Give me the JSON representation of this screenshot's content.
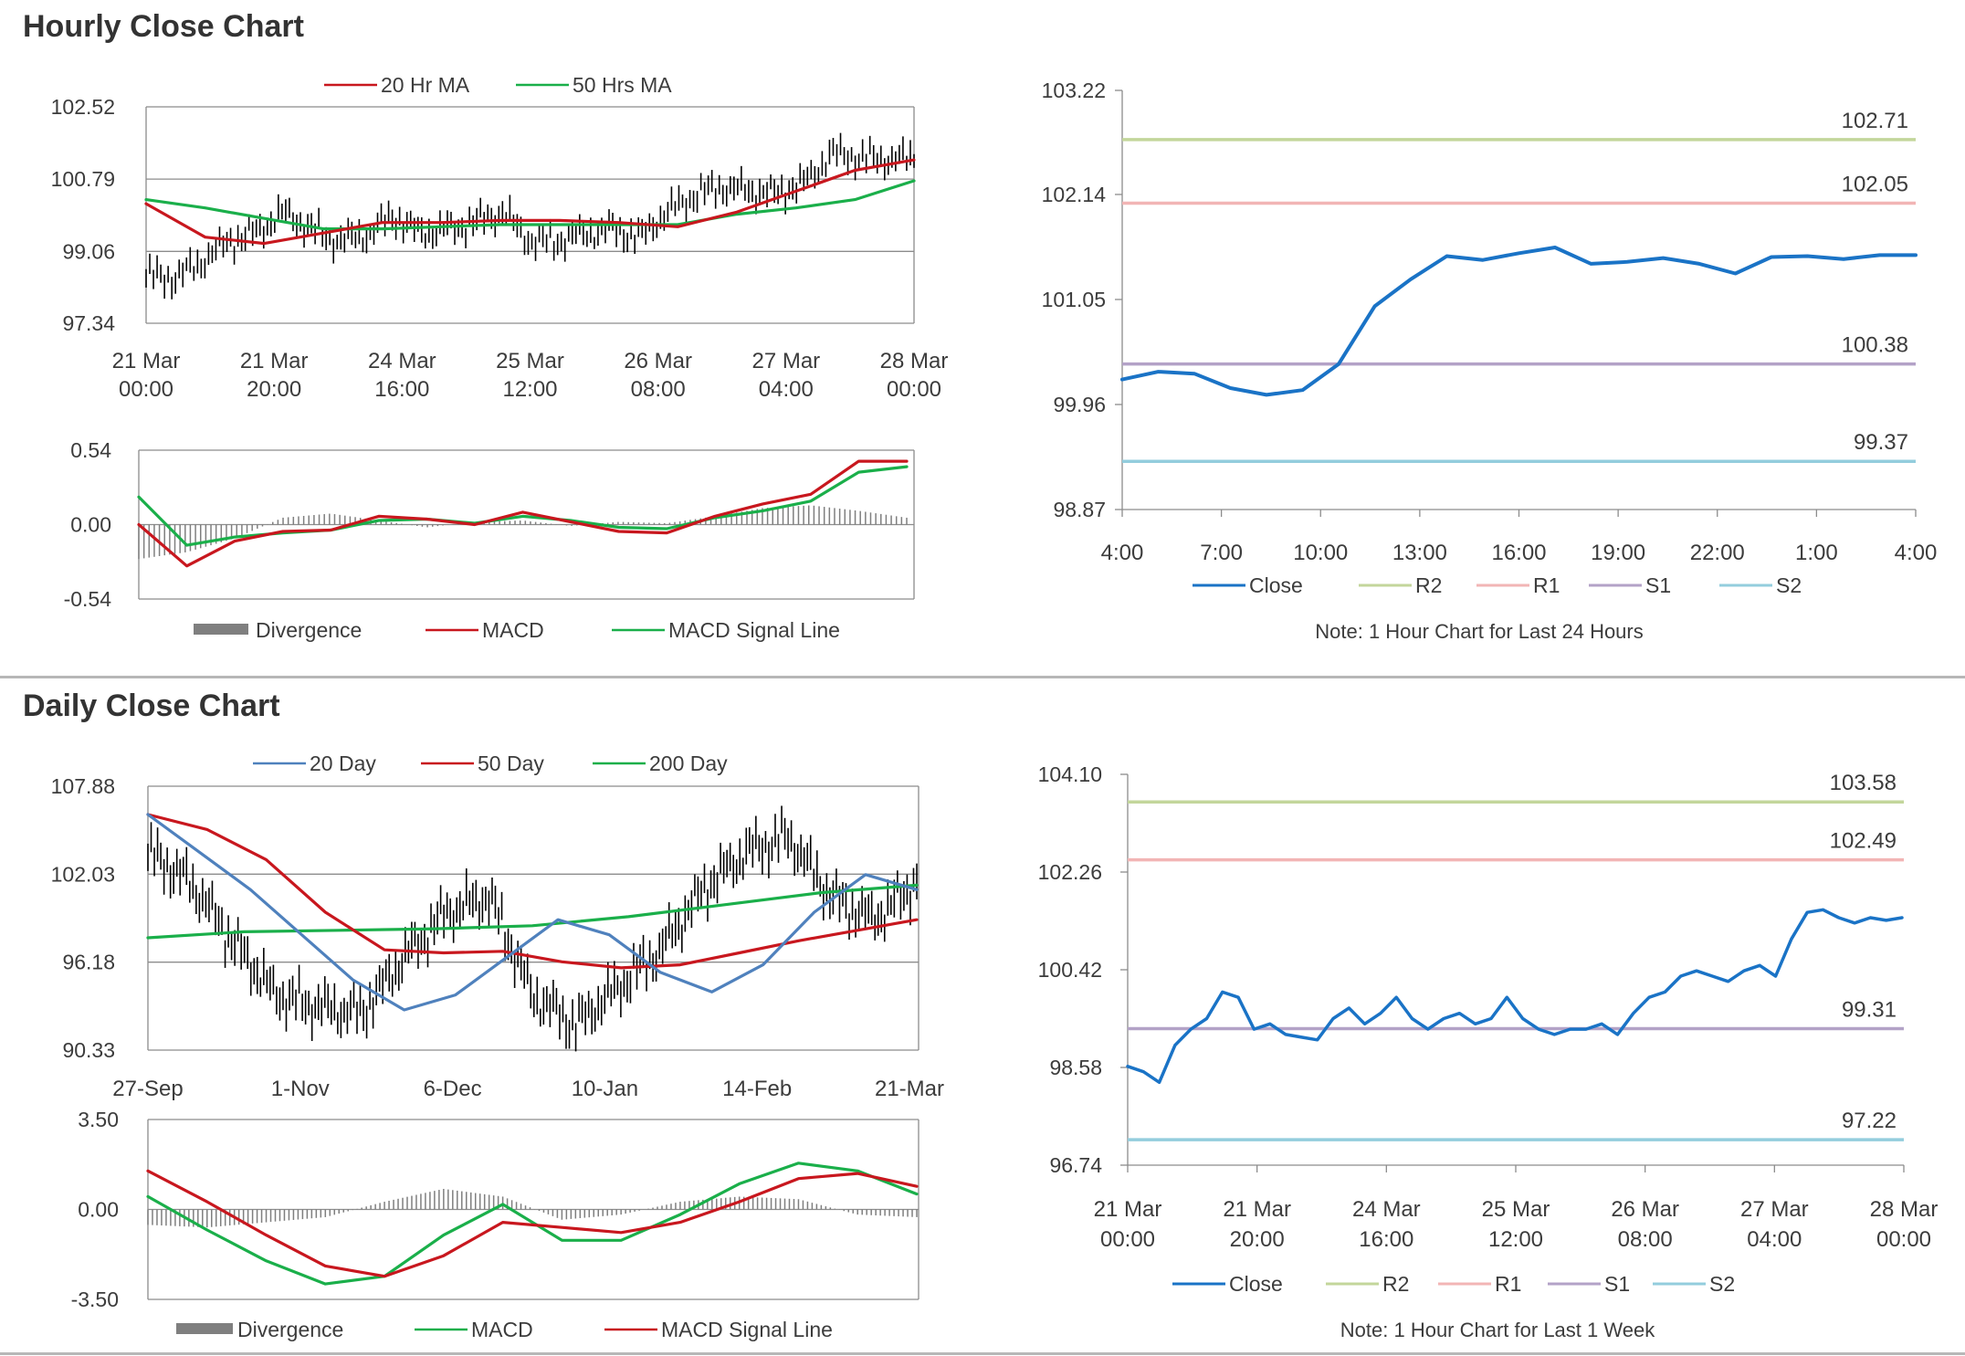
{
  "sections": {
    "hourly_title": "Hourly Close Chart",
    "daily_title": "Daily Close Chart"
  },
  "colors": {
    "red": "#c8171e",
    "green": "#1aaf4a",
    "blue": "#4f81bd",
    "close_blue": "#1a73c6",
    "r2": "#c3d69b",
    "r1": "#f2b5b5",
    "s1": "#b3a2c7",
    "s2": "#93cddd",
    "bars": "#000000",
    "divergence": "#7f7f7f",
    "grid": "#8c8c8c"
  },
  "chart_data": [
    {
      "id": "hourly-price",
      "type": "line",
      "y_ticks": [
        "102.52",
        "100.79",
        "99.06",
        "97.34"
      ],
      "ylim": [
        97.34,
        102.52
      ],
      "x_ticks": [
        [
          "21 Mar",
          "00:00"
        ],
        [
          "21 Mar",
          "20:00"
        ],
        [
          "24 Mar",
          "16:00"
        ],
        [
          "25 Mar",
          "12:00"
        ],
        [
          "26 Mar",
          "08:00"
        ],
        [
          "27 Mar",
          "04:00"
        ],
        [
          "28 Mar",
          "00:00"
        ]
      ],
      "legend": [
        "20 Hr MA",
        "50 Hrs MA"
      ],
      "series": [
        {
          "name": "20 Hr MA",
          "values": [
            100.2,
            99.4,
            99.25,
            99.5,
            99.75,
            99.75,
            99.8,
            99.8,
            99.75,
            99.65,
            100.0,
            100.5,
            101.0,
            101.25
          ]
        },
        {
          "name": "50 Hrs MA",
          "values": [
            100.3,
            100.1,
            99.85,
            99.6,
            99.6,
            99.65,
            99.7,
            99.7,
            99.7,
            99.7,
            99.95,
            100.1,
            100.3,
            100.75
          ]
        },
        {
          "name": "price",
          "values": [
            98.5,
            98.4,
            98.8,
            99.3,
            99.5,
            100.0,
            99.6,
            99.3,
            99.45,
            99.9,
            99.5,
            99.6,
            99.75,
            100.0,
            99.3,
            99.3,
            99.5,
            99.6,
            99.4,
            100.0,
            100.4,
            100.6,
            100.5,
            100.45,
            100.7,
            101.4,
            101.3,
            101.25,
            101.3
          ]
        }
      ]
    },
    {
      "id": "hourly-macd",
      "type": "line",
      "y_ticks": [
        "0.54",
        "0.00",
        "-0.54"
      ],
      "ylim": [
        -0.54,
        0.54
      ],
      "legend": [
        "Divergence",
        "MACD",
        "MACD Signal Line"
      ],
      "series": [
        {
          "name": "MACD",
          "values": [
            0.0,
            -0.3,
            -0.12,
            -0.05,
            -0.04,
            0.06,
            0.04,
            0.0,
            0.09,
            0.02,
            -0.05,
            -0.06,
            0.06,
            0.15,
            0.22,
            0.46,
            0.46
          ]
        },
        {
          "name": "MACD Signal Line",
          "values": [
            0.2,
            -0.15,
            -0.09,
            -0.06,
            -0.04,
            0.03,
            0.04,
            0.01,
            0.06,
            0.03,
            -0.02,
            -0.03,
            0.05,
            0.1,
            0.17,
            0.38,
            0.42
          ]
        },
        {
          "name": "Divergence",
          "values": [
            -0.25,
            -0.2,
            -0.1,
            0.05,
            0.08,
            0.03,
            -0.02,
            0.02,
            0.03,
            -0.01,
            0.02,
            0.01,
            0.06,
            0.12,
            0.14,
            0.1,
            0.05
          ]
        }
      ]
    },
    {
      "id": "hourly-close",
      "type": "line",
      "y_ticks": [
        "103.22",
        "102.14",
        "101.05",
        "99.96",
        "98.87"
      ],
      "ylim": [
        98.87,
        103.22
      ],
      "x_ticks": [
        "4:00",
        "7:00",
        "10:00",
        "13:00",
        "16:00",
        "19:00",
        "22:00",
        "1:00",
        "4:00"
      ],
      "legend": [
        "Close",
        "R2",
        "R1",
        "S1",
        "S2"
      ],
      "levels": [
        {
          "name": "R2",
          "value": 102.71,
          "label": "102.71"
        },
        {
          "name": "R1",
          "value": 102.05,
          "label": "102.05"
        },
        {
          "name": "S1",
          "value": 100.38,
          "label": "100.38"
        },
        {
          "name": "S2",
          "value": 99.37,
          "label": "99.37"
        }
      ],
      "series": [
        {
          "name": "Close",
          "values": [
            100.22,
            100.3,
            100.28,
            100.13,
            100.06,
            100.11,
            100.38,
            100.98,
            101.26,
            101.5,
            101.46,
            101.53,
            101.59,
            101.42,
            101.44,
            101.48,
            101.42,
            101.32,
            101.49,
            101.5,
            101.47,
            101.51,
            101.51
          ]
        }
      ],
      "note": "Note: 1 Hour Chart for Last 24 Hours"
    },
    {
      "id": "daily-price",
      "type": "line",
      "y_ticks": [
        "107.88",
        "102.03",
        "96.18",
        "90.33"
      ],
      "ylim": [
        90.33,
        107.88
      ],
      "x_ticks": [
        "27-Sep",
        "1-Nov",
        "6-Dec",
        "10-Jan",
        "14-Feb",
        "21-Mar"
      ],
      "legend": [
        "20 Day",
        "50 Day",
        "200 Day"
      ],
      "series": [
        {
          "name": "20 Day",
          "values": [
            106.0,
            103.5,
            101.0,
            98.0,
            95.0,
            93.0,
            94.0,
            96.5,
            99.0,
            98.0,
            95.5,
            94.2,
            96.0,
            99.5,
            102.0,
            101.0
          ]
        },
        {
          "name": "50 Day",
          "values": [
            106.0,
            105.0,
            103.0,
            99.5,
            97.0,
            96.8,
            96.9,
            96.2,
            95.8,
            96.0,
            96.8,
            97.6,
            98.3,
            99.0
          ]
        },
        {
          "name": "200 Day",
          "values": [
            97.8,
            98.2,
            98.3,
            98.4,
            98.6,
            99.2,
            100.0,
            100.8,
            101.3
          ]
        },
        {
          "name": "price",
          "values": [
            103.5,
            101.5,
            97.5,
            94.0,
            93.2,
            92.8,
            96.5,
            99.5,
            100.5,
            94.0,
            92.0,
            94.5,
            97.0,
            101.0,
            103.5,
            104.5,
            100.5,
            99.0,
            101.5
          ]
        }
      ]
    },
    {
      "id": "daily-macd",
      "type": "line",
      "y_ticks": [
        "3.50",
        "0.00",
        "-3.50"
      ],
      "ylim": [
        -3.5,
        3.5
      ],
      "legend": [
        "Divergence",
        "MACD",
        "MACD Signal Line"
      ],
      "series": [
        {
          "name": "MACD",
          "values": [
            0.5,
            -0.8,
            -2.0,
            -2.9,
            -2.6,
            -1.0,
            0.2,
            -1.2,
            -1.2,
            -0.2,
            1.0,
            1.8,
            1.5,
            0.6
          ]
        },
        {
          "name": "MACD Signal Line",
          "values": [
            1.5,
            0.3,
            -1.0,
            -2.2,
            -2.6,
            -1.8,
            -0.5,
            -0.7,
            -0.9,
            -0.5,
            0.3,
            1.2,
            1.4,
            0.9
          ]
        },
        {
          "name": "Divergence",
          "values": [
            -0.6,
            -0.7,
            -0.5,
            -0.3,
            0.3,
            0.8,
            0.5,
            -0.4,
            -0.2,
            0.3,
            0.5,
            0.4,
            -0.2,
            -0.3
          ]
        }
      ]
    },
    {
      "id": "daily-close",
      "type": "line",
      "y_ticks": [
        "104.10",
        "102.26",
        "100.42",
        "98.58",
        "96.74"
      ],
      "ylim": [
        96.74,
        104.1
      ],
      "x_ticks": [
        [
          "21 Mar",
          "00:00"
        ],
        [
          "21 Mar",
          "20:00"
        ],
        [
          "24 Mar",
          "16:00"
        ],
        [
          "25 Mar",
          "12:00"
        ],
        [
          "26 Mar",
          "08:00"
        ],
        [
          "27 Mar",
          "04:00"
        ],
        [
          "28 Mar",
          "00:00"
        ]
      ],
      "legend": [
        "Close",
        "R2",
        "R1",
        "S1",
        "S2"
      ],
      "levels": [
        {
          "name": "R2",
          "value": 103.58,
          "label": "103.58"
        },
        {
          "name": "R1",
          "value": 102.49,
          "label": "102.49"
        },
        {
          "name": "S1",
          "value": 99.31,
          "label": "99.31"
        },
        {
          "name": "S2",
          "value": 97.22,
          "label": "97.22"
        }
      ],
      "series": [
        {
          "name": "Close",
          "values": [
            98.6,
            98.5,
            98.3,
            99.0,
            99.3,
            99.5,
            100.0,
            99.9,
            99.3,
            99.4,
            99.2,
            99.15,
            99.1,
            99.5,
            99.7,
            99.4,
            99.6,
            99.9,
            99.5,
            99.3,
            99.5,
            99.6,
            99.4,
            99.5,
            99.9,
            99.5,
            99.3,
            99.2,
            99.3,
            99.3,
            99.4,
            99.2,
            99.6,
            99.9,
            100.0,
            100.3,
            100.4,
            100.3,
            100.2,
            100.4,
            100.5,
            100.3,
            101.0,
            101.5,
            101.55,
            101.4,
            101.3,
            101.4,
            101.35,
            101.4
          ]
        }
      ],
      "note": "Note: 1 Hour Chart for Last 1 Week"
    }
  ]
}
